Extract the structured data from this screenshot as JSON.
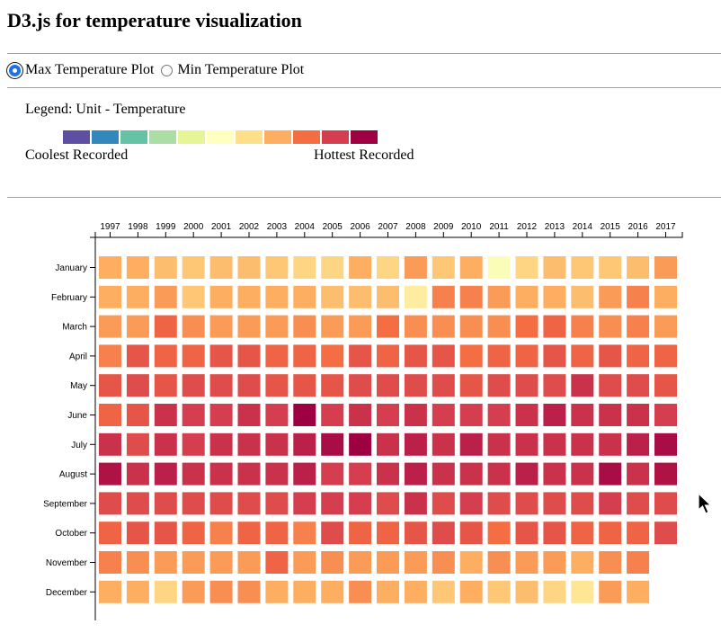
{
  "page": {
    "title": "D3.js for temperature visualization"
  },
  "controls": {
    "radios": [
      {
        "label": "Max Temperature Plot",
        "checked": true
      },
      {
        "label": "Min Temperature Plot",
        "checked": false
      }
    ]
  },
  "legend": {
    "title": "Legend: Unit - Temperature",
    "low_label": "Coolest Recorded",
    "high_label": "Hottest Recorded",
    "colors": [
      "#5e4fa2",
      "#3288bd",
      "#66c2a5",
      "#abdda4",
      "#e6f598",
      "#ffffbf",
      "#fee08b",
      "#fdae61",
      "#f46d43",
      "#d53e4f",
      "#9e0142"
    ]
  },
  "chart_data": {
    "type": "heatmap",
    "x": [
      "1997",
      "1998",
      "1999",
      "2000",
      "2001",
      "2002",
      "2003",
      "2004",
      "2005",
      "2006",
      "2007",
      "2008",
      "2009",
      "2010",
      "2011",
      "2012",
      "2013",
      "2014",
      "2015",
      "2016",
      "2017"
    ],
    "y": [
      "January",
      "February",
      "March",
      "April",
      "May",
      "June",
      "July",
      "August",
      "September",
      "October",
      "November",
      "December"
    ],
    "color_scale": [
      "#5e4fa2",
      "#3288bd",
      "#66c2a5",
      "#abdda4",
      "#e6f598",
      "#ffffbf",
      "#fee08b",
      "#fdae61",
      "#f46d43",
      "#d53e4f",
      "#9e0142"
    ],
    "values": [
      [
        7,
        7,
        6.7,
        6.5,
        6.7,
        6.7,
        6.5,
        6.2,
        6.2,
        7,
        6.2,
        7.3,
        6.5,
        7,
        4.8,
        6.2,
        6.7,
        6.5,
        6.5,
        6.7,
        7.3
      ],
      [
        7,
        7,
        7.3,
        6.5,
        7,
        7,
        7,
        7,
        6.7,
        6.7,
        6.7,
        5.6,
        7.7,
        7.7,
        7.3,
        7,
        7,
        6.7,
        7.3,
        7.7,
        7
      ],
      [
        7.3,
        7.3,
        8.2,
        7.5,
        7.3,
        7.3,
        7.3,
        7.5,
        7.3,
        7.3,
        8,
        7.5,
        7.5,
        7.5,
        7.5,
        8,
        8.2,
        7.7,
        7.5,
        7.7,
        7.3
      ],
      [
        7.7,
        8.5,
        8.2,
        8.2,
        8.5,
        8.5,
        8.2,
        8.2,
        8,
        8.5,
        8.2,
        8.5,
        8.5,
        8,
        8.2,
        8.2,
        8.5,
        8.2,
        8.5,
        8.2,
        8.2
      ],
      [
        8.5,
        8.7,
        8.5,
        8.7,
        8.7,
        8.7,
        8.5,
        8.5,
        8.5,
        8.7,
        8.7,
        8.7,
        8.7,
        8.5,
        8.7,
        8.7,
        8.7,
        9.2,
        8.7,
        8.7,
        8.5
      ],
      [
        8.2,
        8.5,
        9.2,
        9,
        9,
        9.2,
        9,
        10,
        9,
        9.2,
        9,
        9.2,
        9,
        9,
        9,
        9.2,
        9.5,
        9.2,
        9.2,
        9.2,
        9
      ],
      [
        9.2,
        8.7,
        9.2,
        9,
        9.2,
        9.2,
        9.2,
        9.5,
        9.8,
        10,
        9.2,
        9.5,
        9.2,
        9.5,
        9.2,
        9.2,
        9.2,
        9.2,
        9.2,
        9.5,
        9.8
      ],
      [
        9.7,
        9.2,
        9.5,
        9.2,
        9.2,
        9.2,
        9.2,
        9.5,
        9,
        9,
        9.2,
        9.5,
        9.2,
        9.2,
        9.2,
        9.5,
        9.2,
        9.2,
        9.8,
        9.2,
        9.7
      ],
      [
        8.7,
        8.7,
        8.7,
        8.7,
        8.7,
        8.7,
        8.7,
        9,
        9,
        9,
        8.7,
        9.2,
        8.7,
        9,
        8.7,
        8.7,
        8.7,
        8.7,
        9,
        8.7,
        8.7
      ],
      [
        8.2,
        8.5,
        8.5,
        8.2,
        7.7,
        8.2,
        8.2,
        7.7,
        8.7,
        8.2,
        8.2,
        8.5,
        8.7,
        8.5,
        8,
        8.5,
        8.5,
        8.2,
        8.2,
        8.2,
        8.7
      ],
      [
        7.7,
        7.5,
        7.3,
        7.3,
        7.3,
        7.3,
        8.2,
        7.3,
        7.5,
        7.3,
        7.3,
        7.3,
        7.5,
        7,
        7.5,
        7.3,
        7.3,
        7,
        7.5,
        7.7,
        null
      ],
      [
        7,
        7,
        6.2,
        7.3,
        7.5,
        7.5,
        7,
        7,
        7,
        7.5,
        7,
        7,
        6.5,
        7,
        6.5,
        6.7,
        6.2,
        5.8,
        7.3,
        7,
        null
      ]
    ]
  }
}
